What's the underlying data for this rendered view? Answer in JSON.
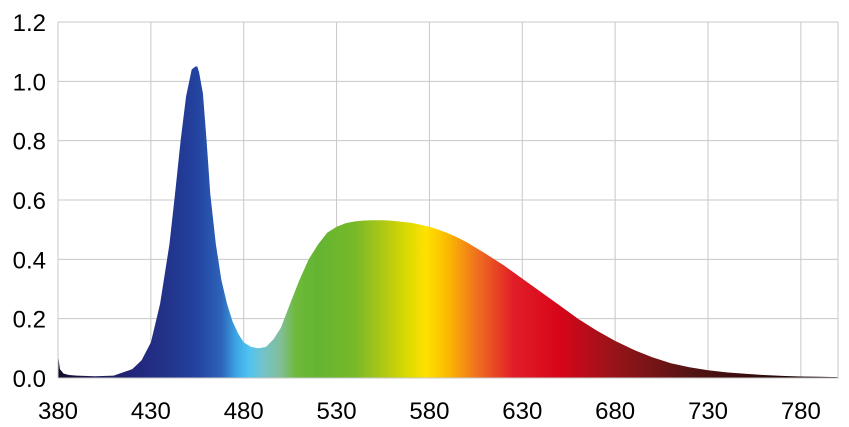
{
  "chart_data": {
    "type": "area",
    "title": "",
    "xlabel": "",
    "ylabel": "",
    "xlim": [
      380,
      800
    ],
    "ylim": [
      0,
      1.2
    ],
    "grid": true,
    "x_ticks": [
      380,
      430,
      480,
      530,
      580,
      630,
      680,
      730,
      780
    ],
    "x_tick_labels": [
      "380",
      "430",
      "480",
      "530",
      "580",
      "630",
      "680",
      "730",
      "780"
    ],
    "y_ticks": [
      0,
      0.2,
      0.4,
      0.6,
      0.8,
      1.0,
      1.2
    ],
    "y_tick_labels": [
      "0.0",
      "0.2",
      "0.4",
      "0.6",
      "0.8",
      "1.0",
      "1.2"
    ],
    "fill": "visible-spectrum colors by wavelength",
    "series": [
      {
        "x": [
          380,
          381,
          383,
          386,
          390,
          400,
          410,
          420,
          425,
          430,
          435,
          440,
          443,
          446,
          449,
          452,
          454,
          455,
          456,
          458,
          460,
          462,
          465,
          468,
          471,
          474,
          477,
          480,
          484,
          488,
          492,
          496,
          500,
          505,
          510,
          515,
          520,
          525,
          530,
          535,
          540,
          545,
          550,
          555,
          560,
          565,
          570,
          575,
          580,
          585,
          590,
          595,
          600,
          610,
          620,
          630,
          640,
          650,
          660,
          670,
          680,
          690,
          700,
          710,
          720,
          730,
          740,
          750,
          760,
          770,
          780,
          790,
          800
        ],
        "values": [
          0.08,
          0.03,
          0.015,
          0.01,
          0.008,
          0.006,
          0.008,
          0.03,
          0.06,
          0.12,
          0.25,
          0.45,
          0.62,
          0.8,
          0.95,
          1.04,
          1.05,
          1.05,
          1.03,
          0.96,
          0.8,
          0.62,
          0.45,
          0.33,
          0.25,
          0.19,
          0.15,
          0.12,
          0.105,
          0.1,
          0.105,
          0.13,
          0.17,
          0.25,
          0.33,
          0.4,
          0.45,
          0.49,
          0.51,
          0.522,
          0.528,
          0.531,
          0.532,
          0.532,
          0.53,
          0.527,
          0.523,
          0.517,
          0.51,
          0.5,
          0.488,
          0.474,
          0.458,
          0.42,
          0.38,
          0.335,
          0.29,
          0.245,
          0.2,
          0.16,
          0.125,
          0.095,
          0.07,
          0.05,
          0.036,
          0.026,
          0.019,
          0.014,
          0.01,
          0.007,
          0.005,
          0.004,
          0.003
        ]
      }
    ]
  }
}
